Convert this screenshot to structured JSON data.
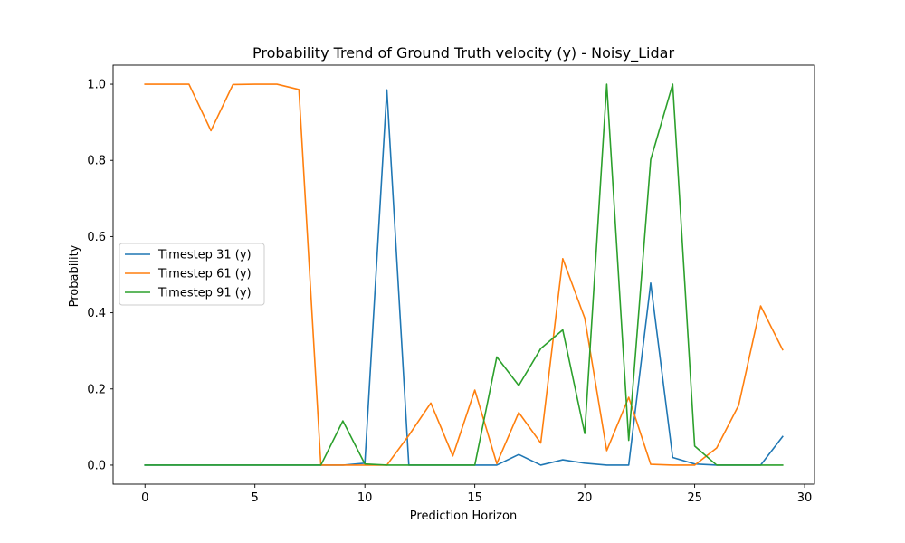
{
  "chart_data": {
    "type": "line",
    "title": "Probability Trend of Ground Truth velocity (y) - Noisy_Lidar",
    "xlabel": "Prediction Horizon",
    "ylabel": "Probability",
    "xlim": [
      -1.45,
      30.45
    ],
    "ylim": [
      -0.05,
      1.05
    ],
    "xticks": [
      0,
      5,
      10,
      15,
      20,
      25,
      30
    ],
    "yticks": [
      0.0,
      0.2,
      0.4,
      0.6,
      0.8,
      1.0
    ],
    "xtick_labels": [
      "0",
      "5",
      "10",
      "15",
      "20",
      "25",
      "30"
    ],
    "ytick_labels": [
      "0.0",
      "0.2",
      "0.4",
      "0.6",
      "0.8",
      "1.0"
    ],
    "grid": false,
    "legend_position": "center-left",
    "x": [
      0,
      1,
      2,
      3,
      4,
      5,
      6,
      7,
      8,
      9,
      10,
      11,
      12,
      13,
      14,
      15,
      16,
      17,
      18,
      19,
      20,
      21,
      22,
      23,
      24,
      25,
      26,
      27,
      28,
      29
    ],
    "series": [
      {
        "name": "Timestep 31 (y)",
        "color": "#1f77b4",
        "values": [
          0,
          0,
          0,
          0,
          0,
          0,
          0,
          0,
          0,
          0,
          0.005,
          0.985,
          0,
          0,
          0,
          0,
          0,
          0.028,
          0,
          0.014,
          0.005,
          0,
          0,
          0.478,
          0.02,
          0.003,
          0,
          0,
          0,
          0.075
        ]
      },
      {
        "name": "Timestep 61 (y)",
        "color": "#ff7f0e",
        "values": [
          1.0,
          1.0,
          1.0,
          0.878,
          0.999,
          1.0,
          1.0,
          0.986,
          0,
          0,
          0,
          0,
          0.078,
          0.163,
          0.024,
          0.197,
          0.004,
          0.138,
          0.058,
          0.542,
          0.386,
          0.038,
          0.178,
          0.002,
          0,
          0,
          0.045,
          0.157,
          0.418,
          0.303
        ]
      },
      {
        "name": "Timestep 91 (y)",
        "color": "#2ca02c",
        "values": [
          0,
          0,
          0,
          0,
          0,
          0,
          0,
          0,
          0,
          0.116,
          0.003,
          0,
          0,
          0,
          0,
          0,
          0.284,
          0.209,
          0.306,
          0.355,
          0.083,
          1.0,
          0.065,
          0.802,
          1.0,
          0.05,
          0,
          0,
          0,
          0
        ]
      }
    ]
  }
}
